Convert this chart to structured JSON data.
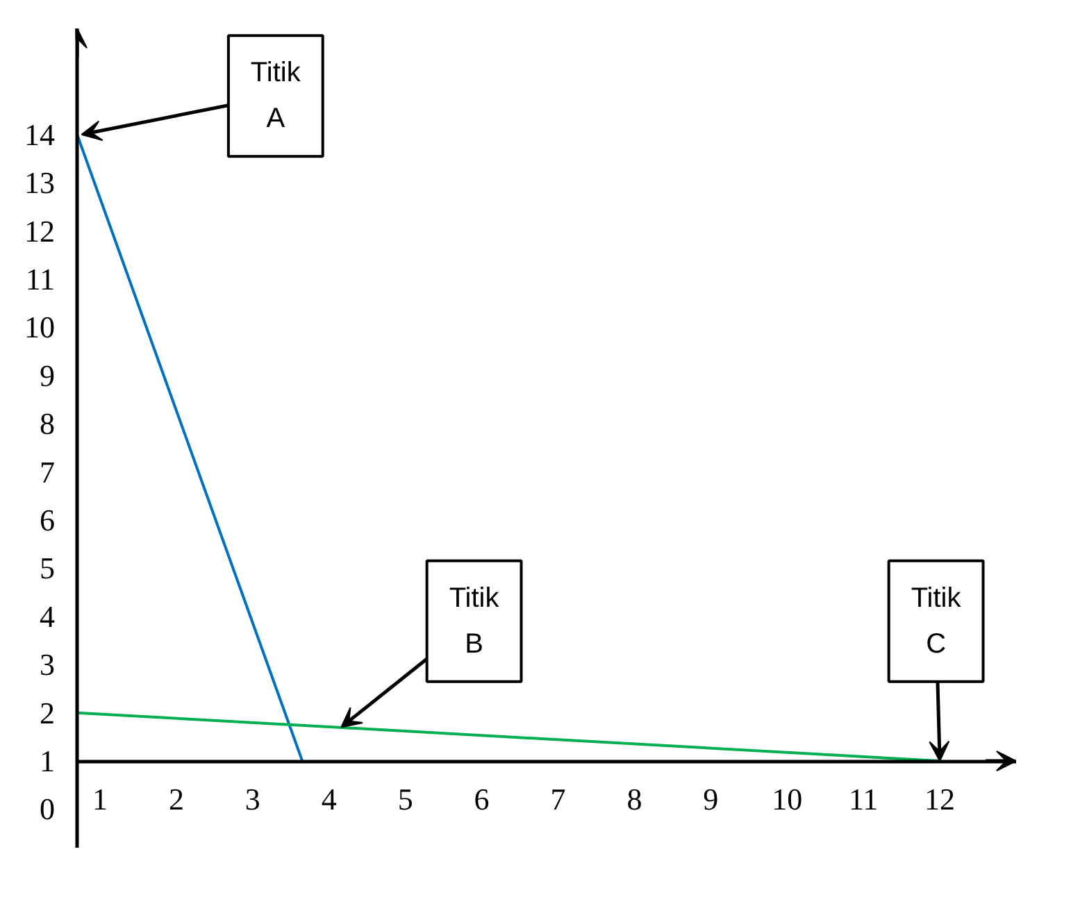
{
  "chart_data": {
    "type": "line",
    "x": [
      0.7,
      3.65
    ],
    "series": [
      {
        "color": "#0070c0",
        "values": [
          14,
          1
        ]
      },
      {
        "color": "#00b050",
        "x": [
          0.7,
          12.0
        ],
        "values": [
          2,
          1
        ]
      }
    ],
    "xlim": [
      0.7,
      13.0
    ],
    "ylim": [
      -0.8,
      16.2
    ],
    "xticks": [
      1,
      2,
      3,
      4,
      5,
      6,
      7,
      8,
      9,
      10,
      11,
      12
    ],
    "yticks": [
      0,
      1,
      2,
      3,
      4,
      5,
      6,
      7,
      8,
      9,
      10,
      11,
      12,
      13,
      14
    ],
    "grid": false,
    "marker": "none",
    "line_style": "solid",
    "annotations": [
      {
        "text": "Titik\nA",
        "x": 0.7,
        "y": 14
      },
      {
        "text": "Titik\nB",
        "x": 4.1,
        "y": 1.7
      },
      {
        "text": "Titik\nC",
        "x": 12.0,
        "y": 1
      }
    ]
  }
}
